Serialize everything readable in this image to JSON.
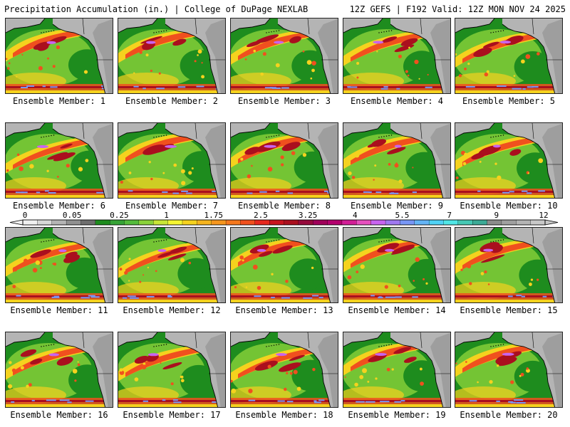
{
  "header": {
    "left": "Precipitation Accumulation (in.) | College of DuPage NEXLAB",
    "right": "12Z GEFS | F192 Valid: 12Z MON NOV 24 2025"
  },
  "member_label_prefix": "Ensemble Member: ",
  "members": [
    1,
    2,
    3,
    4,
    5,
    6,
    7,
    8,
    9,
    10,
    11,
    12,
    13,
    14,
    15,
    16,
    17,
    18,
    19,
    20
  ],
  "colorbar": {
    "tick_labels": [
      "0",
      "0.05",
      "0.25",
      "1",
      "1.75",
      "2.5",
      "3.25",
      "4",
      "5.5",
      "7",
      "9",
      "12"
    ],
    "colors": [
      "#f0f0f0",
      "#d8d8d8",
      "#b4b4b4",
      "#909090",
      "#6e6e6e",
      "#1e8c1e",
      "#36a336",
      "#54bb3c",
      "#8ad23a",
      "#c8e637",
      "#f5f532",
      "#f5d21e",
      "#f5b41e",
      "#f5961e",
      "#f5781e",
      "#f0501e",
      "#e6281e",
      "#c8141e",
      "#aa0f1e",
      "#960a3c",
      "#a0005a",
      "#b4006e",
      "#d21e96",
      "#e650be",
      "#c864f0",
      "#a078f0",
      "#7896f5",
      "#64b4f5",
      "#50d2f5",
      "#50e6e6",
      "#46c8b4",
      "#3caa96",
      "#8c8c8c",
      "#a0a0a0",
      "#b4b4b4",
      "#c8c8c8"
    ]
  },
  "colors": {
    "land": "#b4b4b4",
    "ocean_dry": "#1e8c1e",
    "light": "#8ad23a",
    "moderate": "#f5d21e",
    "heavy": "#f0501e",
    "very_heavy": "#aa0f1e",
    "extreme": "#c864f0",
    "tropical": "#7896f5"
  }
}
